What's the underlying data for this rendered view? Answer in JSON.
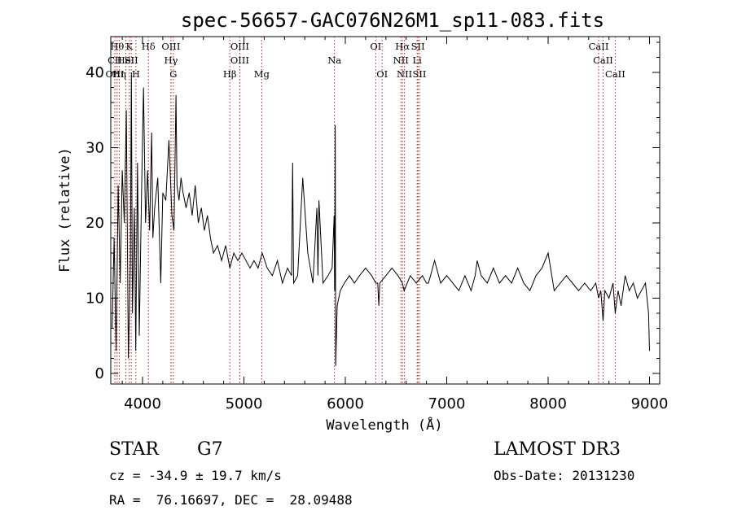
{
  "chart_data": {
    "type": "line",
    "title": "spec-56657-GAC076N26M1_sp11-083.fits",
    "xlabel": "Wavelength (Å)",
    "ylabel": "Flux (relative)",
    "xlim": [
      3700,
      9050
    ],
    "ylim": [
      -1,
      44
    ],
    "x_ticks": [
      4000,
      5000,
      6000,
      7000,
      8000,
      9000
    ],
    "y_ticks": [
      0,
      10,
      20,
      30,
      40
    ],
    "grid": false,
    "series": [
      {
        "name": "spectrum",
        "x": [
          3700,
          3720,
          3740,
          3760,
          3780,
          3800,
          3820,
          3840,
          3860,
          3880,
          3890,
          3900,
          3920,
          3933,
          3950,
          3968,
          3990,
          4010,
          4030,
          4050,
          4070,
          4090,
          4102,
          4120,
          4150,
          4180,
          4200,
          4230,
          4260,
          4290,
          4310,
          4330,
          4340,
          4360,
          4380,
          4400,
          4430,
          4460,
          4490,
          4520,
          4550,
          4580,
          4610,
          4640,
          4670,
          4700,
          4740,
          4780,
          4820,
          4861,
          4900,
          4940,
          4980,
          5020,
          5060,
          5100,
          5140,
          5180,
          5230,
          5280,
          5330,
          5380,
          5430,
          5470,
          5480,
          5490,
          5530,
          5580,
          5630,
          5680,
          5720,
          5730,
          5740,
          5780,
          5830,
          5870,
          5890,
          5895,
          5900,
          5905,
          5920,
          5950,
          5990,
          6040,
          6090,
          6140,
          6200,
          6260,
          6300,
          6320,
          6330,
          6340,
          6400,
          6460,
          6520,
          6563,
          6580,
          6640,
          6700,
          6760,
          6800,
          6820,
          6880,
          6940,
          7000,
          7060,
          7120,
          7180,
          7240,
          7280,
          7300,
          7340,
          7400,
          7460,
          7520,
          7580,
          7640,
          7700,
          7760,
          7820,
          7880,
          7940,
          8000,
          8060,
          8120,
          8180,
          8240,
          8300,
          8360,
          8420,
          8470,
          8498,
          8520,
          8542,
          8560,
          8600,
          8640,
          8662,
          8690,
          8720,
          8760,
          8800,
          8840,
          8880,
          8920,
          8960,
          8990,
          9000
        ],
        "y": [
          6,
          18,
          3,
          25,
          12,
          27,
          20,
          35,
          2,
          15,
          40,
          8,
          22,
          3,
          28,
          5,
          24,
          38,
          20,
          27,
          19,
          32,
          18,
          22,
          26,
          12,
          24,
          23,
          31,
          21,
          19,
          37,
          25,
          23,
          26,
          24,
          22,
          24,
          21,
          25,
          20,
          22,
          19,
          21,
          18,
          16,
          17,
          15,
          17,
          14,
          16,
          15,
          16,
          15,
          14,
          15,
          14,
          16,
          14,
          13,
          15,
          12,
          14,
          13,
          28,
          12,
          13,
          26,
          16,
          12,
          22,
          13,
          23,
          12,
          13,
          14,
          21,
          11,
          33,
          1,
          9,
          11,
          12,
          13,
          12,
          13,
          14,
          13,
          12,
          12,
          9,
          12,
          13,
          14,
          13,
          12,
          11,
          13,
          12,
          13,
          12,
          12,
          15,
          12,
          13,
          12,
          11,
          13,
          11,
          13,
          15,
          13,
          12,
          14,
          12,
          13,
          12,
          14,
          12,
          11,
          13,
          14,
          16,
          11,
          12,
          13,
          12,
          11,
          12,
          11,
          12,
          10,
          11,
          7,
          11,
          10,
          12,
          8,
          11,
          9,
          13,
          11,
          12,
          10,
          11,
          12,
          8,
          3
        ]
      }
    ],
    "line_markers": [
      {
        "label": "CII",
        "wavelength": 3727,
        "row": 2
      },
      {
        "label": "OIII",
        "wavelength": 3727,
        "row": 3
      },
      {
        "label": "Hθ",
        "wavelength": 3750,
        "row": 1
      },
      {
        "label": "Hη",
        "wavelength": 3770,
        "row": 3
      },
      {
        "label": "HeI",
        "wavelength": 3835,
        "row": 2
      },
      {
        "label": "K",
        "wavelength": 3870,
        "row": 1
      },
      {
        "label": "SII",
        "wavelength": 3889,
        "row": 2
      },
      {
        "label": "H",
        "wavelength": 3935,
        "row": 3
      },
      {
        "label": "Hδ",
        "wavelength": 4058,
        "row": 1
      },
      {
        "label": "OIII",
        "wavelength": 4280,
        "row": 1
      },
      {
        "label": "Hγ",
        "wavelength": 4281,
        "row": 2
      },
      {
        "label": "G",
        "wavelength": 4304,
        "row": 3
      },
      {
        "label": "Hβ",
        "wavelength": 4861,
        "row": 3
      },
      {
        "label": "OIII",
        "wavelength": 4959,
        "row": 1
      },
      {
        "label": "OIII",
        "wavelength": 4959,
        "row": 2
      },
      {
        "label": "Mg",
        "wavelength": 5175,
        "row": 3
      },
      {
        "label": "Na",
        "wavelength": 5893,
        "row": 2
      },
      {
        "label": "OI",
        "wavelength": 6300,
        "row": 1
      },
      {
        "label": "OI",
        "wavelength": 6363,
        "row": 3
      },
      {
        "label": "Hα",
        "wavelength": 6563,
        "row": 1
      },
      {
        "label": "NII",
        "wavelength": 6548,
        "row": 2
      },
      {
        "label": "NII",
        "wavelength": 6583,
        "row": 3
      },
      {
        "label": "SII",
        "wavelength": 6716,
        "row": 1
      },
      {
        "label": "Li",
        "wavelength": 6708,
        "row": 2
      },
      {
        "label": "SII",
        "wavelength": 6731,
        "row": 3
      },
      {
        "label": "CaII",
        "wavelength": 8498,
        "row": 1
      },
      {
        "label": "CaII",
        "wavelength": 8542,
        "row": 2
      },
      {
        "label": "CaII",
        "wavelength": 8662,
        "row": 3
      }
    ]
  },
  "info": {
    "object_type": "STAR",
    "subclass": "G7",
    "survey": "LAMOST DR3",
    "cz": "cz = -34.9 ± 19.7 km/s",
    "obs_date": "Obs-Date: 20131230",
    "coords": "RA =  76.16697, DEC =  28.09488"
  }
}
